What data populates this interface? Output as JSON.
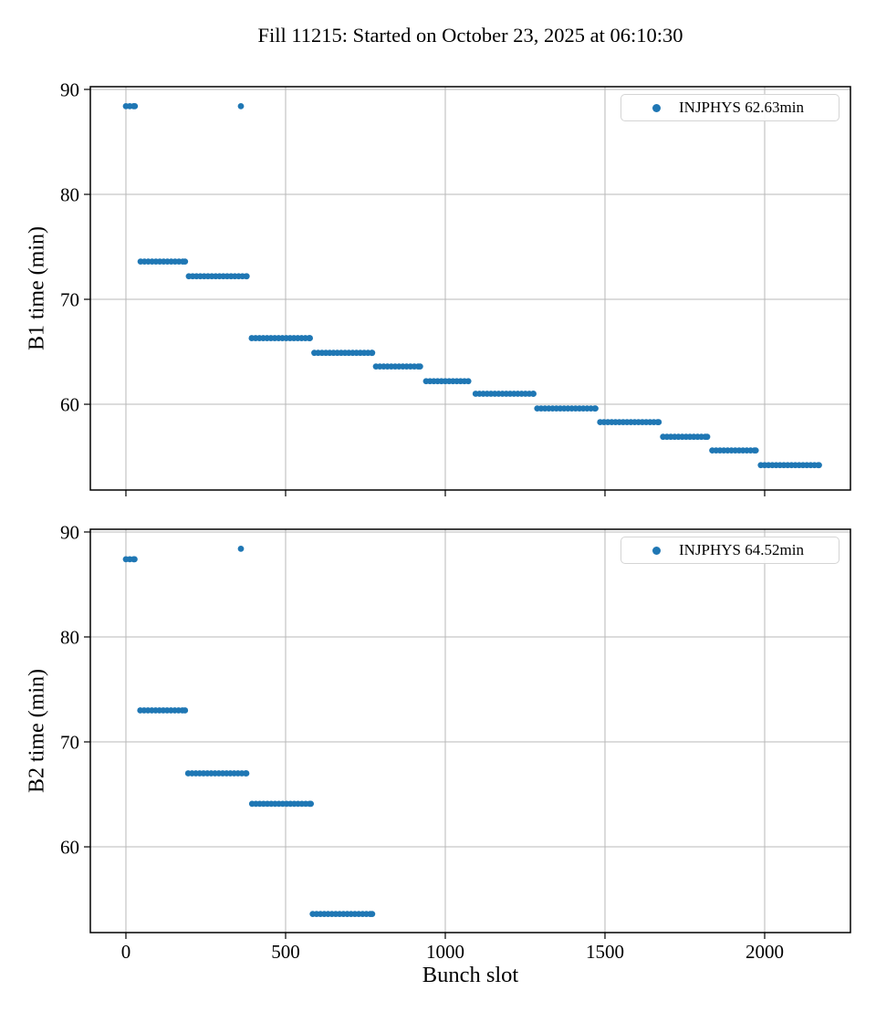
{
  "title": "Fill 11215: Started on October 23, 2025 at 06:10:30",
  "xlabel": "Bunch slot",
  "colors": {
    "marker": "#1f77b4",
    "grid": "#b8b8b8",
    "axis": "#000000",
    "legend_border": "#d4d4d4"
  },
  "chart_data": [
    {
      "type": "scatter",
      "name": "B1",
      "ylabel": "B1 time (min)",
      "legend": "INJPHYS 62.63min",
      "legend_position": "upper right",
      "grid": true,
      "xlim": [
        -111.4,
        2268.6
      ],
      "ylim": [
        51.83,
        90.26
      ],
      "xticks": [
        0,
        500,
        1000,
        1500,
        2000
      ],
      "yticks": [
        60,
        70,
        80,
        90
      ],
      "xtick_labels_visible": false,
      "clusters": [
        {
          "start": 0,
          "end": 28,
          "value": 88.4
        },
        {
          "start": 360,
          "end": 360,
          "value": 88.4
        },
        {
          "start": 46,
          "end": 185,
          "value": 73.6
        },
        {
          "start": 197,
          "end": 378,
          "value": 72.2
        },
        {
          "start": 394,
          "end": 576,
          "value": 66.3
        },
        {
          "start": 590,
          "end": 771,
          "value": 64.9
        },
        {
          "start": 783,
          "end": 921,
          "value": 63.6
        },
        {
          "start": 940,
          "end": 1072,
          "value": 62.2
        },
        {
          "start": 1095,
          "end": 1276,
          "value": 61.0
        },
        {
          "start": 1288,
          "end": 1470,
          "value": 59.6
        },
        {
          "start": 1485,
          "end": 1668,
          "value": 58.3
        },
        {
          "start": 1682,
          "end": 1820,
          "value": 56.9
        },
        {
          "start": 1836,
          "end": 1972,
          "value": 55.6
        },
        {
          "start": 1988,
          "end": 2170,
          "value": 54.2
        }
      ]
    },
    {
      "type": "scatter",
      "name": "B2",
      "ylabel": "B2 time (min)",
      "legend": "INJPHYS 64.52min",
      "legend_position": "upper right",
      "grid": true,
      "xlim": [
        -111.4,
        2268.6
      ],
      "ylim": [
        51.83,
        90.26
      ],
      "xticks": [
        0,
        500,
        1000,
        1500,
        2000
      ],
      "yticks": [
        60,
        70,
        80,
        90
      ],
      "xtick_labels_visible": true,
      "clusters": [
        {
          "start": 0,
          "end": 27,
          "value": 87.4
        },
        {
          "start": 360,
          "end": 360,
          "value": 88.4
        },
        {
          "start": 45,
          "end": 185,
          "value": 73.0
        },
        {
          "start": 195,
          "end": 377,
          "value": 67.0
        },
        {
          "start": 395,
          "end": 579,
          "value": 64.1
        },
        {
          "start": 585,
          "end": 771,
          "value": 53.6
        }
      ]
    }
  ]
}
